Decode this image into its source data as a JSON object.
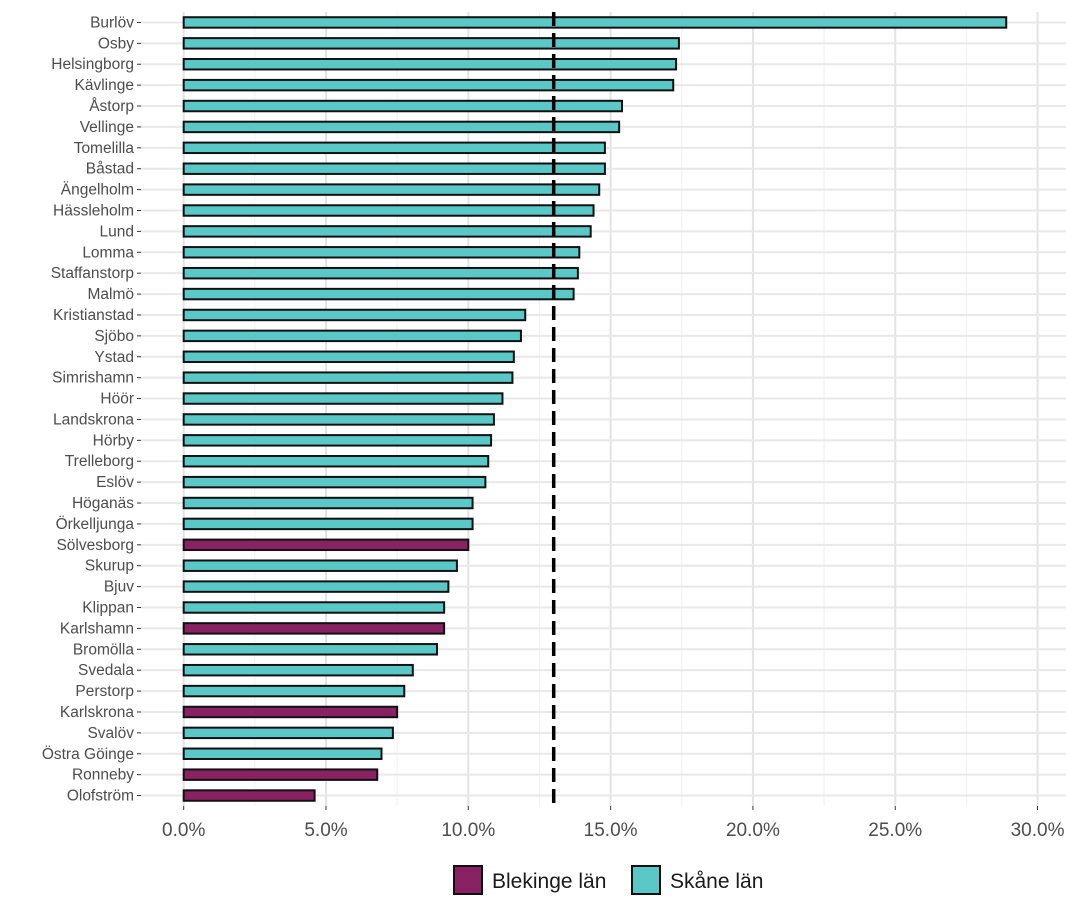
{
  "chart_data": {
    "type": "bar",
    "orientation": "horizontal",
    "categories": [
      "Burlöv",
      "Osby",
      "Helsingborg",
      "Kävlinge",
      "Åstorp",
      "Vellinge",
      "Tomelilla",
      "Båstad",
      "Ängelholm",
      "Hässleholm",
      "Lund",
      "Lomma",
      "Staffanstorp",
      "Malmö",
      "Kristianstad",
      "Sjöbo",
      "Ystad",
      "Simrishamn",
      "Höör",
      "Landskrona",
      "Hörby",
      "Trelleborg",
      "Eslöv",
      "Höganäs",
      "Örkelljunga",
      "Sölvesborg",
      "Skurup",
      "Bjuv",
      "Klippan",
      "Karlshamn",
      "Bromölla",
      "Svedala",
      "Perstorp",
      "Karlskrona",
      "Svalöv",
      "Östra Göinge",
      "Ronneby",
      "Olofström"
    ],
    "values": [
      28.9,
      17.4,
      17.3,
      17.2,
      15.4,
      15.3,
      14.8,
      14.8,
      14.6,
      14.4,
      14.3,
      13.9,
      13.85,
      13.7,
      12.0,
      11.85,
      11.6,
      11.55,
      11.2,
      10.9,
      10.8,
      10.7,
      10.6,
      10.15,
      10.15,
      10.0,
      9.6,
      9.3,
      9.15,
      9.15,
      8.9,
      8.05,
      7.75,
      7.5,
      7.35,
      6.95,
      6.8,
      4.6
    ],
    "groups": [
      "Skåne län",
      "Skåne län",
      "Skåne län",
      "Skåne län",
      "Skåne län",
      "Skåne län",
      "Skåne län",
      "Skåne län",
      "Skåne län",
      "Skåne län",
      "Skåne län",
      "Skåne län",
      "Skåne län",
      "Skåne län",
      "Skåne län",
      "Skåne län",
      "Skåne län",
      "Skåne län",
      "Skåne län",
      "Skåne län",
      "Skåne län",
      "Skåne län",
      "Skåne län",
      "Skåne län",
      "Skåne län",
      "Blekinge län",
      "Skåne län",
      "Skåne län",
      "Skåne län",
      "Blekinge län",
      "Skåne län",
      "Skåne län",
      "Skåne län",
      "Blekinge län",
      "Skåne län",
      "Skåne län",
      "Blekinge län",
      "Blekinge län"
    ],
    "series_colors": {
      "Blekinge län": "#8a2163",
      "Skåne län": "#5bc8c8"
    },
    "reference_line": {
      "value": 13.0,
      "style": "dashed"
    },
    "xlim": [
      -1.5,
      31.0
    ],
    "xticks": [
      0,
      5,
      10,
      15,
      20,
      25,
      30
    ],
    "xtick_labels": [
      "0.0%",
      "5.0%",
      "10.0%",
      "15.0%",
      "20.0%",
      "25.0%",
      "30.0%"
    ],
    "legend": {
      "position": "bottom",
      "entries": [
        "Blekinge län",
        "Skåne län"
      ]
    },
    "grid": true,
    "title": "",
    "xlabel": "",
    "ylabel": ""
  }
}
